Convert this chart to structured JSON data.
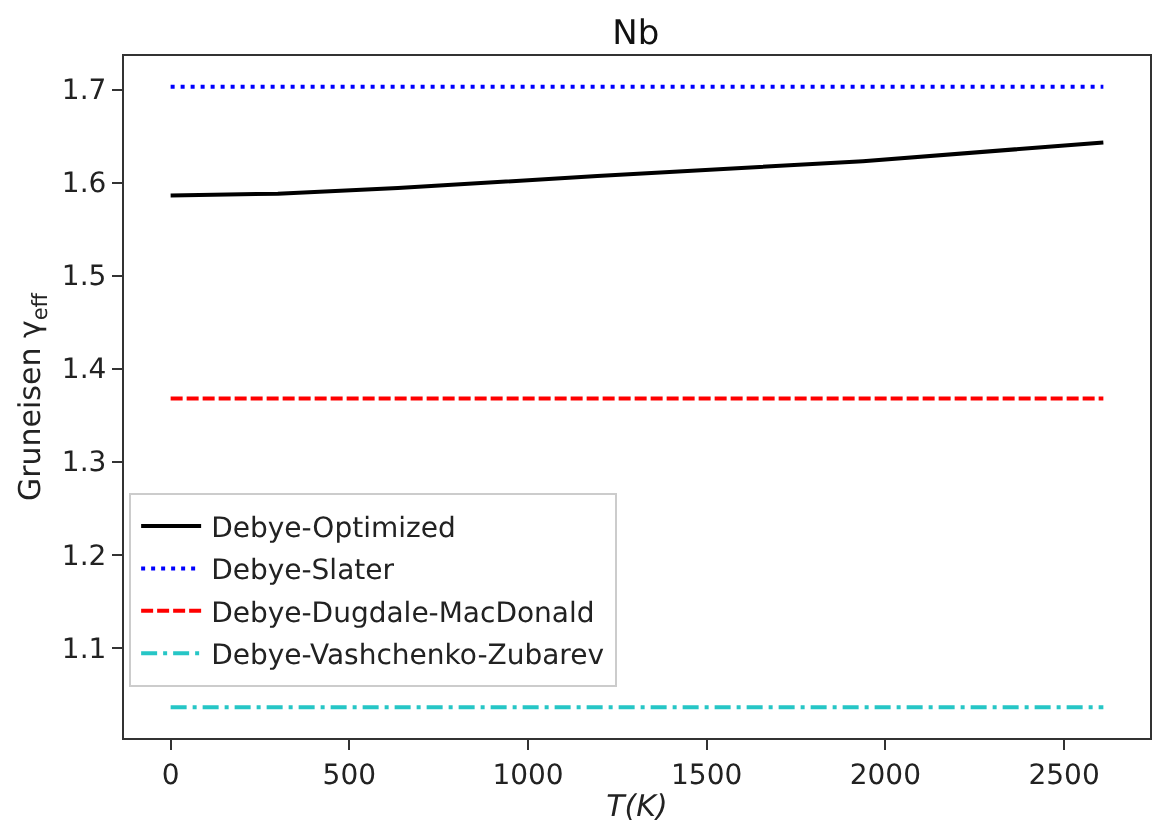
{
  "chart_data": {
    "type": "line",
    "title": "Nb",
    "xlabel": "T(K)",
    "ylabel": "Gruneisen γ$_{eff}$",
    "series": [
      {
        "name": "Debye-Optimized",
        "color": "#000000",
        "line_style": "solid",
        "x": [
          0,
          300,
          636,
          1194,
          1937,
          2610
        ],
        "values": [
          1.586,
          1.588,
          1.594,
          1.607,
          1.623,
          1.643
        ]
      },
      {
        "name": "Debye-Slater",
        "color": "#0000ff",
        "line_style": "dotted",
        "x": [
          0,
          2610
        ],
        "values": [
          1.703,
          1.703
        ]
      },
      {
        "name": "Debye-Dugdale-MacDonald",
        "color": "#ff0000",
        "line_style": "dashed",
        "x": [
          0,
          2610
        ],
        "values": [
          1.368,
          1.368
        ]
      },
      {
        "name": "Debye-Vashchenko-Zubarev",
        "color": "#26c6c6",
        "line_style": "dashdot",
        "x": [
          0,
          2610
        ],
        "values": [
          1.036,
          1.036
        ]
      }
    ],
    "xlim": [
      -130.5,
      2740.5
    ],
    "xticks": [
      0,
      500,
      1000,
      1500,
      2000,
      2500
    ],
    "ylim": [
      1.003,
      1.736
    ],
    "yticks": [
      1.1,
      1.2,
      1.3,
      1.4,
      1.5,
      1.6,
      1.7
    ],
    "legend": "bottom left",
    "marker": "none"
  }
}
